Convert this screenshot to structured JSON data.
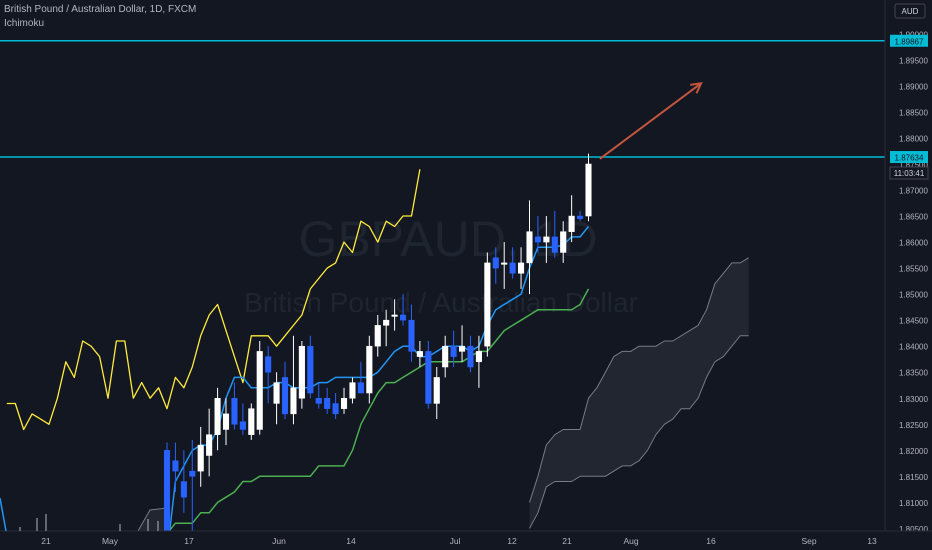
{
  "header": {
    "symbol_title": "British Pound / Australian Dollar, 1D, FXCM",
    "indicator": "Ichimoku"
  },
  "watermark": {
    "ticker": "GBPAUD, 1D",
    "name": "British Pound / Australian Dollar"
  },
  "price_axis": {
    "currency": "AUD",
    "countdown": "11:03:41"
  },
  "colors": {
    "background": "#131722",
    "bull_candle": "#ffffff",
    "bear_candle": "#2962ff",
    "conversion_line": "#2196f3",
    "base_line": "#4caf50",
    "lagging_span": "#ffeb3b",
    "kumo": "#363a45",
    "kumo_edge": "#787b86",
    "horizontal_lines": "#00bcd4",
    "arrow": "#c2563f"
  },
  "chart_data": {
    "type": "candlestick",
    "title": "British Pound / Australian Dollar, 1D, FXCM",
    "ylim": [
      1.8045,
      1.9065
    ],
    "y_ticks": [
      1.805,
      1.81,
      1.815,
      1.82,
      1.825,
      1.83,
      1.835,
      1.84,
      1.845,
      1.85,
      1.855,
      1.86,
      1.865,
      1.87,
      1.875,
      1.88,
      1.885,
      1.89,
      1.895,
      1.9
    ],
    "x_labels": [
      "21",
      "May",
      "17",
      "Jun",
      "14",
      "Jul",
      "12",
      "21",
      "Aug",
      "16",
      "Sep",
      "13"
    ],
    "horizontal_lines": [
      1.89867,
      1.87634
    ],
    "candles": [
      {
        "o": 1.82,
        "h": 1.8215,
        "l": 1.8,
        "c": 1.804
      },
      {
        "o": 1.818,
        "h": 1.8215,
        "l": 1.812,
        "c": 1.816
      },
      {
        "o": 1.814,
        "h": 1.82,
        "l": 1.808,
        "c": 1.811
      },
      {
        "o": 1.816,
        "h": 1.822,
        "l": 1.804,
        "c": 1.815
      },
      {
        "o": 1.816,
        "h": 1.8245,
        "l": 1.813,
        "c": 1.821
      },
      {
        "o": 1.819,
        "h": 1.828,
        "l": 1.815,
        "c": 1.823
      },
      {
        "o": 1.823,
        "h": 1.832,
        "l": 1.82,
        "c": 1.83
      },
      {
        "o": 1.824,
        "h": 1.83,
        "l": 1.821,
        "c": 1.827
      },
      {
        "o": 1.83,
        "h": 1.833,
        "l": 1.824,
        "c": 1.825
      },
      {
        "o": 1.8255,
        "h": 1.829,
        "l": 1.823,
        "c": 1.824
      },
      {
        "o": 1.823,
        "h": 1.829,
        "l": 1.822,
        "c": 1.828
      },
      {
        "o": 1.824,
        "h": 1.841,
        "l": 1.823,
        "c": 1.839
      },
      {
        "o": 1.838,
        "h": 1.84,
        "l": 1.829,
        "c": 1.835
      },
      {
        "o": 1.829,
        "h": 1.835,
        "l": 1.825,
        "c": 1.833
      },
      {
        "o": 1.834,
        "h": 1.837,
        "l": 1.826,
        "c": 1.827
      },
      {
        "o": 1.827,
        "h": 1.842,
        "l": 1.825,
        "c": 1.832
      },
      {
        "o": 1.83,
        "h": 1.841,
        "l": 1.828,
        "c": 1.84
      },
      {
        "o": 1.84,
        "h": 1.842,
        "l": 1.83,
        "c": 1.831
      },
      {
        "o": 1.83,
        "h": 1.833,
        "l": 1.828,
        "c": 1.829
      },
      {
        "o": 1.83,
        "h": 1.832,
        "l": 1.827,
        "c": 1.828
      },
      {
        "o": 1.829,
        "h": 1.831,
        "l": 1.826,
        "c": 1.827
      },
      {
        "o": 1.828,
        "h": 1.832,
        "l": 1.827,
        "c": 1.83
      },
      {
        "o": 1.83,
        "h": 1.834,
        "l": 1.829,
        "c": 1.833
      },
      {
        "o": 1.833,
        "h": 1.837,
        "l": 1.831,
        "c": 1.831
      },
      {
        "o": 1.831,
        "h": 1.842,
        "l": 1.829,
        "c": 1.84
      },
      {
        "o": 1.84,
        "h": 1.846,
        "l": 1.838,
        "c": 1.844
      },
      {
        "o": 1.844,
        "h": 1.847,
        "l": 1.84,
        "c": 1.845
      },
      {
        "o": 1.846,
        "h": 1.849,
        "l": 1.843,
        "c": 1.846
      },
      {
        "o": 1.846,
        "h": 1.85,
        "l": 1.844,
        "c": 1.845
      },
      {
        "o": 1.845,
        "h": 1.848,
        "l": 1.837,
        "c": 1.839
      },
      {
        "o": 1.838,
        "h": 1.841,
        "l": 1.836,
        "c": 1.839
      },
      {
        "o": 1.839,
        "h": 1.841,
        "l": 1.828,
        "c": 1.829
      },
      {
        "o": 1.829,
        "h": 1.836,
        "l": 1.826,
        "c": 1.834
      },
      {
        "o": 1.836,
        "h": 1.842,
        "l": 1.834,
        "c": 1.84
      },
      {
        "o": 1.84,
        "h": 1.843,
        "l": 1.836,
        "c": 1.838
      },
      {
        "o": 1.839,
        "h": 1.844,
        "l": 1.837,
        "c": 1.84
      },
      {
        "o": 1.84,
        "h": 1.842,
        "l": 1.835,
        "c": 1.836
      },
      {
        "o": 1.837,
        "h": 1.842,
        "l": 1.832,
        "c": 1.839
      },
      {
        "o": 1.84,
        "h": 1.858,
        "l": 1.838,
        "c": 1.856
      },
      {
        "o": 1.857,
        "h": 1.859,
        "l": 1.852,
        "c": 1.855
      },
      {
        "o": 1.856,
        "h": 1.86,
        "l": 1.851,
        "c": 1.856
      },
      {
        "o": 1.856,
        "h": 1.859,
        "l": 1.853,
        "c": 1.854
      },
      {
        "o": 1.854,
        "h": 1.859,
        "l": 1.851,
        "c": 1.856
      },
      {
        "o": 1.856,
        "h": 1.868,
        "l": 1.85,
        "c": 1.862
      },
      {
        "o": 1.861,
        "h": 1.865,
        "l": 1.858,
        "c": 1.86
      },
      {
        "o": 1.86,
        "h": 1.865,
        "l": 1.856,
        "c": 1.861
      },
      {
        "o": 1.861,
        "h": 1.866,
        "l": 1.857,
        "c": 1.858
      },
      {
        "o": 1.858,
        "h": 1.864,
        "l": 1.856,
        "c": 1.862
      },
      {
        "o": 1.862,
        "h": 1.869,
        "l": 1.86,
        "c": 1.865
      },
      {
        "o": 1.865,
        "h": 1.866,
        "l": 1.864,
        "c": 1.8645
      },
      {
        "o": 1.865,
        "h": 1.877,
        "l": 1.864,
        "c": 1.875
      }
    ],
    "conversion_line": [
      1.8,
      1.814,
      1.817,
      1.82,
      1.821,
      1.821,
      1.824,
      1.83,
      1.834,
      1.834,
      1.832,
      1.832,
      1.832,
      1.833,
      1.833,
      1.832,
      1.832,
      1.832,
      1.833,
      1.833,
      1.834,
      1.834,
      1.834,
      1.834,
      1.834,
      1.835,
      1.837,
      1.839,
      1.84,
      1.84,
      1.838,
      1.838,
      1.839,
      1.84,
      1.84,
      1.84,
      1.839,
      1.84,
      1.844,
      1.847,
      1.848,
      1.849,
      1.85,
      1.855,
      1.859,
      1.859,
      1.859,
      1.8595,
      1.861,
      1.861,
      1.863
    ],
    "base_line": [
      1.804,
      1.806,
      1.806,
      1.806,
      1.808,
      1.808,
      1.81,
      1.811,
      1.812,
      1.814,
      1.814,
      1.815,
      1.815,
      1.815,
      1.815,
      1.815,
      1.815,
      1.815,
      1.817,
      1.817,
      1.817,
      1.817,
      1.82,
      1.825,
      1.828,
      1.831,
      1.833,
      1.833,
      1.834,
      1.835,
      1.836,
      1.837,
      1.837,
      1.837,
      1.837,
      1.837,
      1.838,
      1.839,
      1.839,
      1.841,
      1.843,
      1.844,
      1.845,
      1.846,
      1.847,
      1.847,
      1.847,
      1.847,
      1.847,
      1.848,
      1.851
    ],
    "lagging_span": [
      1.829,
      1.829,
      1.824,
      1.827,
      1.826,
      1.825,
      1.83,
      1.837,
      1.834,
      1.841,
      1.84,
      1.838,
      1.83,
      1.841,
      1.841,
      1.83,
      1.833,
      1.83,
      1.832,
      1.828,
      1.834,
      1.832,
      1.836,
      1.842,
      1.846,
      1.848,
      1.843,
      1.838,
      1.833,
      1.842,
      1.842,
      1.842,
      1.84,
      1.842,
      1.844,
      1.846,
      1.851,
      1.853,
      1.855,
      1.856,
      1.86,
      1.858,
      1.864,
      1.863,
      1.86,
      1.864,
      1.863,
      1.865,
      1.865,
      1.874
    ],
    "kumo_span_a": [
      1.81,
      1.815,
      1.821,
      1.823,
      1.824,
      1.824,
      1.824,
      1.83,
      1.832,
      1.835,
      1.838,
      1.839,
      1.839,
      1.84,
      1.84,
      1.84,
      1.841,
      1.841,
      1.842,
      1.843,
      1.844,
      1.847,
      1.852,
      1.854,
      1.856,
      1.856,
      1.857
    ],
    "kumo_span_b": [
      1.805,
      1.808,
      1.813,
      1.814,
      1.814,
      1.814,
      1.815,
      1.815,
      1.815,
      1.815,
      1.816,
      1.817,
      1.817,
      1.818,
      1.82,
      1.823,
      1.825,
      1.826,
      1.828,
      1.828,
      1.83,
      1.834,
      1.837,
      1.838,
      1.84,
      1.842,
      1.842
    ],
    "projection_arrow": {
      "from": [
        51,
        1.876
      ],
      "to": [
        63,
        1.8905
      ]
    }
  }
}
